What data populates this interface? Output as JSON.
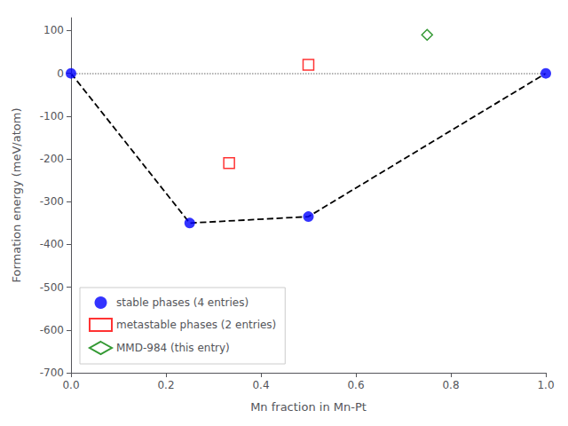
{
  "chart_data": {
    "type": "scatter",
    "xlabel": "Mn fraction in Mn-Pt",
    "ylabel": "Formation energy (meV/atom)",
    "xlim": [
      0.0,
      1.0
    ],
    "xticks": [
      {
        "value": 0.0,
        "label": "0.0"
      },
      0.2,
      0.4,
      0.6,
      0.8,
      {
        "value": 1.0,
        "label": "1.0"
      }
    ],
    "ylim": [
      -700,
      130
    ],
    "yticks": [
      100,
      0,
      -100,
      -200,
      -300,
      -400,
      -500,
      -600,
      -700
    ],
    "legend": "lower left",
    "grid": false,
    "hlines": [
      {
        "y": 0.0,
        "color": "#999999",
        "line_style": "dotted"
      }
    ],
    "series": [
      {
        "type": "line",
        "color": "black",
        "line_style": "dashed",
        "marker": "none",
        "x": [
          0.0,
          0.25,
          0.5,
          1.0
        ],
        "values": [
          0.0,
          -350.0,
          -335.0,
          0.0
        ]
      },
      {
        "name": "stable phases (4 entries)",
        "color": "blue",
        "marker": "circle",
        "x": [
          0.0,
          0.25,
          0.5,
          1.0
        ],
        "values": [
          0.0,
          -350.0,
          -335.0,
          0.0
        ]
      },
      {
        "name": "metastable phases (2 entries)",
        "color": "red",
        "marker": "open_square",
        "x": [
          0.333,
          0.5
        ],
        "values": [
          -210.0,
          20.0
        ]
      },
      {
        "name": "MMD-984 (this entry)",
        "color": "green",
        "marker": "open_diamond",
        "x": [
          0.75
        ],
        "values": [
          90.0
        ]
      }
    ]
  }
}
